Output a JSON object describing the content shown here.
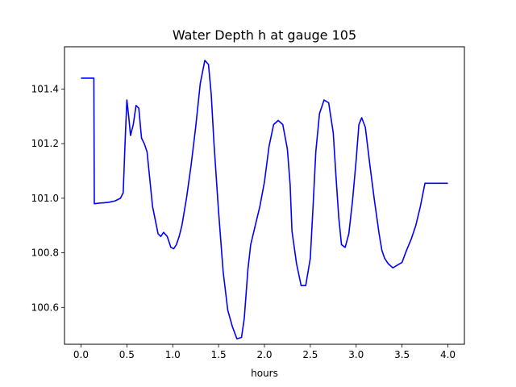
{
  "chart_data": {
    "type": "line",
    "title": "Water Depth h at gauge 105",
    "xlabel": "hours",
    "ylabel": "",
    "xlim": [
      -0.18,
      4.18
    ],
    "ylim": [
      100.465,
      101.555
    ],
    "grid": false,
    "legend": "none",
    "x_ticks": [
      {
        "value": 0.0,
        "label": "0.0"
      },
      {
        "value": 0.5,
        "label": "0.5"
      },
      {
        "value": 1.0,
        "label": "1.0"
      },
      {
        "value": 1.5,
        "label": "1.5"
      },
      {
        "value": 2.0,
        "label": "2.0"
      },
      {
        "value": 2.5,
        "label": "2.5"
      },
      {
        "value": 3.0,
        "label": "3.0"
      },
      {
        "value": 3.5,
        "label": "3.5"
      },
      {
        "value": 4.0,
        "label": "4.0"
      }
    ],
    "y_ticks": [
      {
        "value": 100.6,
        "label": "100.6"
      },
      {
        "value": 100.8,
        "label": "100.8"
      },
      {
        "value": 101.0,
        "label": "101.0"
      },
      {
        "value": 101.2,
        "label": "101.2"
      },
      {
        "value": 101.4,
        "label": "101.4"
      }
    ],
    "series": [
      {
        "color": "#0000ff",
        "x": [
          0.0,
          0.14,
          0.145,
          0.2,
          0.3,
          0.37,
          0.43,
          0.46,
          0.48,
          0.5,
          0.52,
          0.54,
          0.57,
          0.6,
          0.63,
          0.66,
          0.69,
          0.72,
          0.75,
          0.78,
          0.81,
          0.84,
          0.87,
          0.9,
          0.94,
          0.98,
          1.01,
          1.04,
          1.07,
          1.1,
          1.15,
          1.2,
          1.25,
          1.3,
          1.35,
          1.39,
          1.42,
          1.45,
          1.5,
          1.55,
          1.6,
          1.65,
          1.7,
          1.75,
          1.78,
          1.8,
          1.82,
          1.85,
          1.9,
          1.95,
          2.0,
          2.05,
          2.1,
          2.15,
          2.2,
          2.25,
          2.28,
          2.3,
          2.35,
          2.4,
          2.45,
          2.5,
          2.53,
          2.56,
          2.6,
          2.65,
          2.7,
          2.75,
          2.78,
          2.81,
          2.84,
          2.88,
          2.92,
          2.96,
          3.0,
          3.03,
          3.06,
          3.1,
          3.15,
          3.2,
          3.25,
          3.28,
          3.31,
          3.35,
          3.4,
          3.45,
          3.5,
          3.55,
          3.6,
          3.65,
          3.7,
          3.75,
          3.8,
          3.85,
          3.9,
          3.95,
          4.0
        ],
        "values": [
          101.44,
          101.44,
          100.98,
          100.982,
          100.985,
          100.99,
          101.0,
          101.02,
          101.2,
          101.36,
          101.3,
          101.23,
          101.27,
          101.34,
          101.33,
          101.22,
          101.2,
          101.17,
          101.07,
          100.97,
          100.92,
          100.87,
          100.86,
          100.875,
          100.86,
          100.82,
          100.815,
          100.83,
          100.86,
          100.9,
          101.0,
          101.12,
          101.26,
          101.42,
          101.505,
          101.49,
          101.38,
          101.2,
          100.95,
          100.73,
          100.59,
          100.53,
          100.485,
          100.49,
          100.56,
          100.65,
          100.74,
          100.83,
          100.9,
          100.97,
          101.06,
          101.19,
          101.27,
          101.285,
          101.27,
          101.18,
          101.05,
          100.88,
          100.76,
          100.68,
          100.68,
          100.78,
          100.97,
          101.17,
          101.31,
          101.36,
          101.35,
          101.24,
          101.08,
          100.93,
          100.83,
          100.82,
          100.87,
          100.99,
          101.14,
          101.27,
          101.295,
          101.26,
          101.12,
          100.99,
          100.87,
          100.81,
          100.78,
          100.76,
          100.745,
          100.755,
          100.765,
          100.81,
          100.85,
          100.9,
          100.97,
          101.055,
          101.055,
          101.055,
          101.055,
          101.055,
          101.055
        ]
      }
    ]
  }
}
